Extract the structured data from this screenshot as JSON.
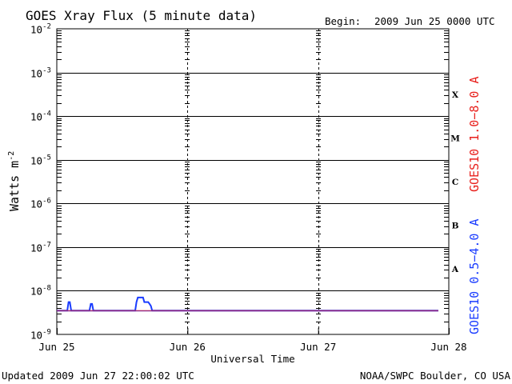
{
  "chart_data": {
    "type": "line",
    "title": "GOES Xray Flux (5 minute data)",
    "begin_label": "Begin:",
    "begin_value": "2009 Jun 25 0000 UTC",
    "xlabel": "Universal Time",
    "ylabel": "Watts m",
    "ylabel_exp": "-2",
    "y_scale": "log",
    "ylim": [
      1e-09,
      0.01
    ],
    "y_ticks": [
      {
        "base": "10",
        "exp": "-2",
        "value": 0.01
      },
      {
        "base": "10",
        "exp": "-3",
        "value": 0.001
      },
      {
        "base": "10",
        "exp": "-4",
        "value": 0.0001
      },
      {
        "base": "10",
        "exp": "-5",
        "value": 1e-05
      },
      {
        "base": "10",
        "exp": "-6",
        "value": 1e-06
      },
      {
        "base": "10",
        "exp": "-7",
        "value": 1e-07
      },
      {
        "base": "10",
        "exp": "-8",
        "value": 1e-08
      },
      {
        "base": "10",
        "exp": "-9",
        "value": 1e-09
      }
    ],
    "x_unit": "days since 2009 Jun 25 0000 UTC",
    "xlim": [
      0,
      3
    ],
    "x_ticks": [
      {
        "label": "Jun 25",
        "value": 0
      },
      {
        "label": "Jun 26",
        "value": 1
      },
      {
        "label": "Jun 27",
        "value": 2
      },
      {
        "label": "Jun 28",
        "value": 3
      }
    ],
    "flare_classes": [
      {
        "label": "X",
        "low": 0.0001,
        "high": 0.001
      },
      {
        "label": "M",
        "low": 1e-05,
        "high": 0.0001
      },
      {
        "label": "C",
        "low": 1e-06,
        "high": 1e-05
      },
      {
        "label": "B",
        "low": 1e-07,
        "high": 1e-06
      },
      {
        "label": "A",
        "low": 1e-08,
        "high": 1e-07
      }
    ],
    "series": [
      {
        "name": "GOES10 1.0−8.0 A",
        "color": "#e8201c",
        "x": [
          0.0,
          2.92
        ],
        "y": [
          3.5e-09,
          3.5e-09
        ]
      },
      {
        "name": "GOES10 0.5−4.0 A",
        "color": "#1a3cff",
        "x": [
          0.0,
          0.08,
          0.09,
          0.1,
          0.11,
          0.12,
          0.25,
          0.26,
          0.27,
          0.28,
          0.29,
          0.6,
          0.61,
          0.62,
          0.63,
          0.66,
          0.67,
          0.7,
          0.71,
          0.72,
          0.73,
          0.74,
          2.92
        ],
        "y": [
          3.5e-09,
          3.5e-09,
          5.5e-09,
          5.5e-09,
          3.5e-09,
          3.5e-09,
          3.5e-09,
          5e-09,
          5e-09,
          3.5e-09,
          3.5e-09,
          3.5e-09,
          5.5e-09,
          7e-09,
          7e-09,
          7e-09,
          5.5e-09,
          5.5e-09,
          5e-09,
          4.5e-09,
          3.5e-09,
          3.5e-09,
          3.5e-09
        ]
      }
    ],
    "legend_placement": "right (vertical)",
    "grid": true
  },
  "footer": {
    "updated": "Updated 2009 Jun 27 22:00:02 UTC",
    "credit": "NOAA/SWPC Boulder, CO USA"
  }
}
